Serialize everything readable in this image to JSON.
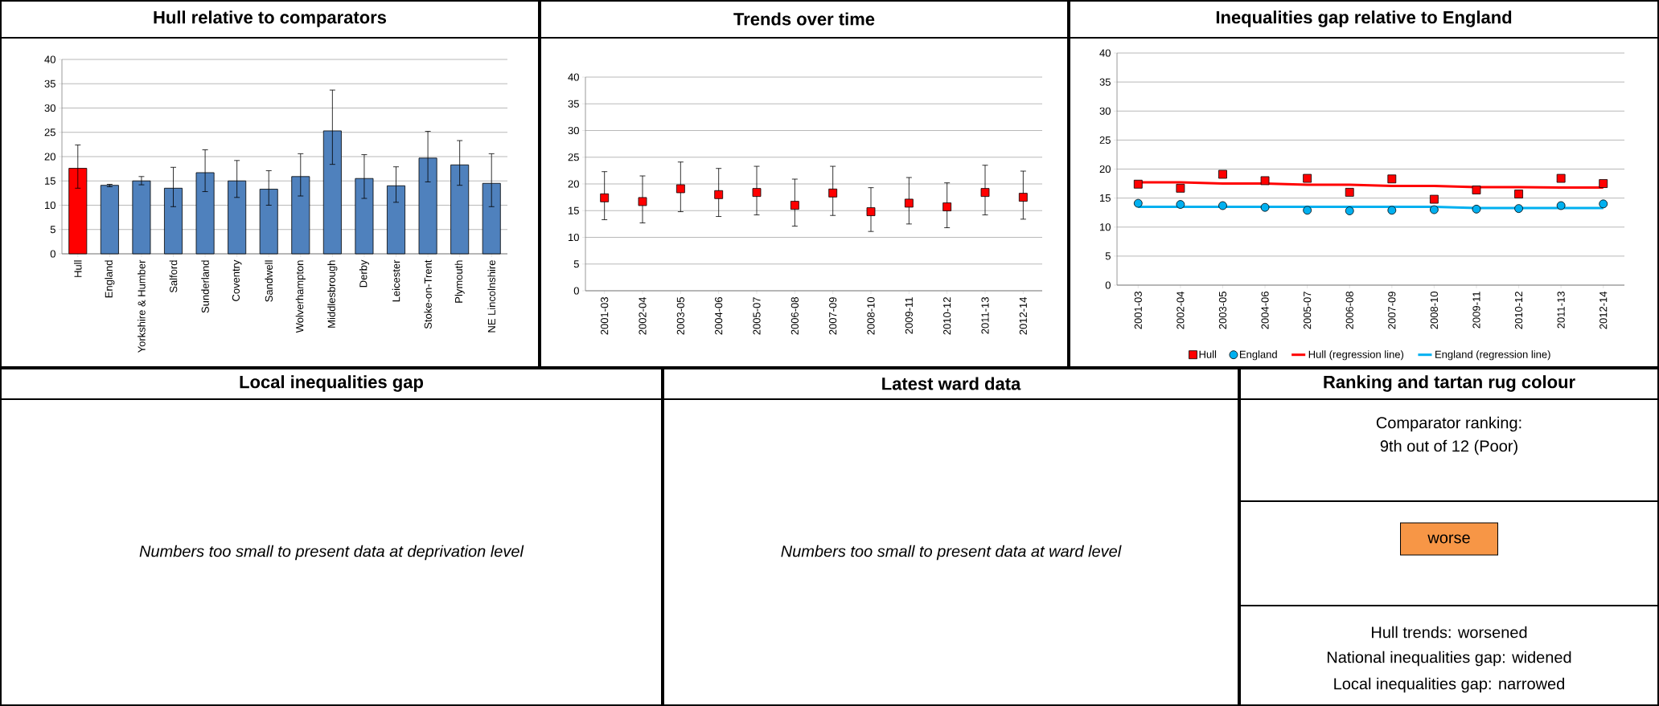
{
  "chart_data": [
    {
      "type": "bar",
      "title": "Hull relative to comparators",
      "categories": [
        "Hull",
        "England",
        "Yorkshire & Humber",
        "Salford",
        "Sunderland",
        "Coventry",
        "Sandwell",
        "Wolverhampton",
        "Middlesbrough",
        "Derby",
        "Leicester",
        "Stoke-on-Trent",
        "Plymouth",
        "NE Lincolnshire"
      ],
      "values": [
        17.6,
        14.1,
        15.0,
        13.5,
        16.7,
        15.0,
        13.3,
        15.9,
        25.3,
        15.5,
        14.0,
        19.7,
        18.3,
        14.5
      ],
      "errors": [
        [
          13.5,
          22.4
        ],
        [
          13.8,
          14.3
        ],
        [
          14.2,
          15.9
        ],
        [
          9.7,
          17.8
        ],
        [
          12.8,
          21.4
        ],
        [
          11.6,
          19.2
        ],
        [
          10.0,
          17.1
        ],
        [
          11.9,
          20.6
        ],
        [
          18.4,
          33.7
        ],
        [
          11.4,
          20.4
        ],
        [
          10.6,
          17.9
        ],
        [
          14.8,
          25.2
        ],
        [
          14.1,
          23.3
        ],
        [
          9.7,
          20.6
        ]
      ],
      "colors": [
        "#ff0000",
        "#4f81bd",
        "#4f81bd",
        "#4f81bd",
        "#4f81bd",
        "#4f81bd",
        "#4f81bd",
        "#4f81bd",
        "#4f81bd",
        "#4f81bd",
        "#4f81bd",
        "#4f81bd",
        "#4f81bd",
        "#4f81bd"
      ],
      "ylim": [
        0,
        40
      ],
      "yticks": [
        0,
        5,
        10,
        15,
        20,
        25,
        30,
        35,
        40
      ],
      "grid": "y"
    },
    {
      "type": "scatter",
      "title": "Trends over time",
      "categories": [
        "2001-03",
        "2002-04",
        "2003-05",
        "2004-06",
        "2005-07",
        "2006-08",
        "2007-09",
        "2008-10",
        "2009-11",
        "2010-12",
        "2011-13",
        "2012-14"
      ],
      "values": [
        17.4,
        16.7,
        19.1,
        18.0,
        18.4,
        16.0,
        18.3,
        14.8,
        16.4,
        15.7,
        18.4,
        17.5
      ],
      "errors": [
        [
          13.3,
          22.3
        ],
        [
          12.7,
          21.5
        ],
        [
          14.8,
          24.1
        ],
        [
          13.9,
          22.9
        ],
        [
          14.2,
          23.3
        ],
        [
          12.1,
          20.9
        ],
        [
          14.1,
          23.3
        ],
        [
          11.1,
          19.3
        ],
        [
          12.5,
          21.2
        ],
        [
          11.8,
          20.2
        ],
        [
          14.2,
          23.5
        ],
        [
          13.4,
          22.4
        ]
      ],
      "color": "#ff0000",
      "marker": "square",
      "ylim": [
        0,
        40
      ],
      "yticks": [
        0,
        5,
        10,
        15,
        20,
        25,
        30,
        35,
        40
      ],
      "grid": "y"
    },
    {
      "type": "scatter",
      "title": "Inequalities gap relative to England",
      "categories": [
        "2001-03",
        "2002-04",
        "2003-05",
        "2004-06",
        "2005-07",
        "2006-08",
        "2007-09",
        "2008-10",
        "2009-11",
        "2010-12",
        "2011-13",
        "2012-14"
      ],
      "series": [
        {
          "name": "Hull",
          "type": "scatter",
          "marker": "square",
          "color": "#ff0000",
          "values": [
            17.4,
            16.7,
            19.1,
            18.0,
            18.4,
            16.0,
            18.3,
            14.8,
            16.4,
            15.7,
            18.4,
            17.5
          ]
        },
        {
          "name": "England",
          "type": "scatter",
          "marker": "circle",
          "color": "#00b0f0",
          "values": [
            14.1,
            13.9,
            13.7,
            13.4,
            12.9,
            12.8,
            12.9,
            13.0,
            13.1,
            13.2,
            13.7,
            14.0
          ]
        },
        {
          "name": "Hull (regression line)",
          "type": "line",
          "marker": "none",
          "color": "#ff0000",
          "values": [
            17.7,
            17.7,
            17.5,
            17.5,
            17.3,
            17.3,
            17.1,
            17.1,
            16.9,
            16.9,
            16.8,
            16.8
          ]
        },
        {
          "name": "England (regression line)",
          "type": "line",
          "marker": "none",
          "color": "#00b0f0",
          "values": [
            13.5,
            13.5,
            13.5,
            13.5,
            13.5,
            13.5,
            13.5,
            13.5,
            13.3,
            13.3,
            13.3,
            13.3
          ]
        }
      ],
      "ylim": [
        0,
        40
      ],
      "yticks": [
        0,
        5,
        10,
        15,
        20,
        25,
        30,
        35,
        40
      ],
      "grid": "y",
      "legend": "bottom"
    },
    {
      "type": "other",
      "title": "Local inequalities gap",
      "annotations": [
        "Numbers too small to present data at deprivation level"
      ]
    },
    {
      "type": "other",
      "title": "Latest ward data",
      "annotations": [
        "Numbers too small to present data at ward level"
      ]
    },
    {
      "type": "other",
      "title": "Ranking and tartan rug colour",
      "annotations": [
        "Comparator ranking:",
        "9th out of 12 (Poor)",
        "worse",
        "Hull trends: worsened",
        "National inequalities gap: widened",
        "Local inequalities gap: narrowed"
      ],
      "colors": [
        null,
        null,
        "#f79646",
        null,
        null,
        null
      ]
    }
  ]
}
